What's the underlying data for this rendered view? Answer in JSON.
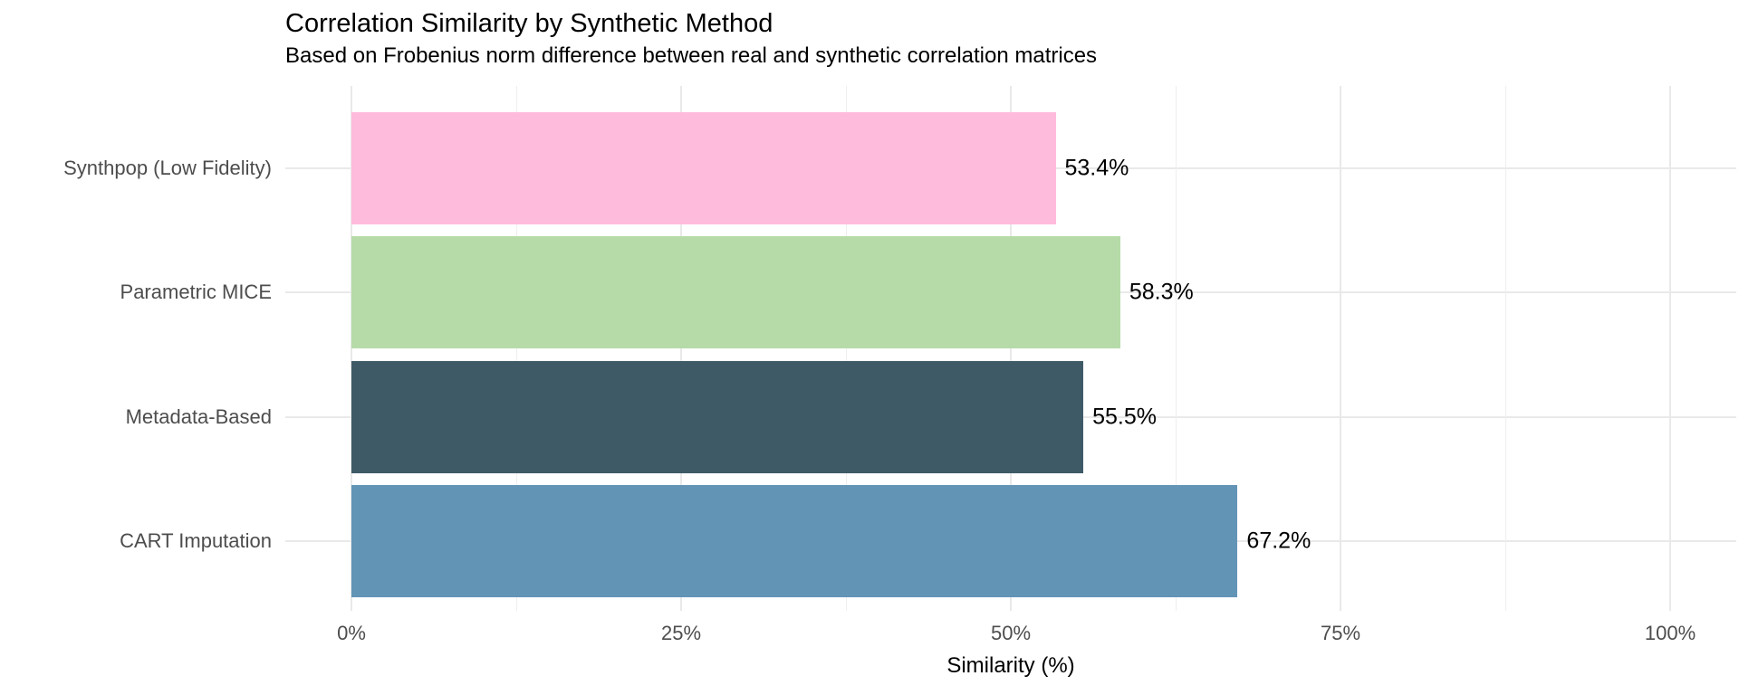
{
  "chart_data": {
    "type": "bar",
    "orientation": "horizontal",
    "title": "Correlation Similarity by Synthetic Method",
    "subtitle": "Based on Frobenius norm difference between real and synthetic correlation matrices",
    "xlabel": "Similarity (%)",
    "ylabel": "",
    "xlim": [
      0,
      100
    ],
    "grid": true,
    "legend": false,
    "categories": [
      "Synthpop (Low Fidelity)",
      "Parametric MICE",
      "Metadata-Based",
      "CART Imputation"
    ],
    "values": [
      53.4,
      58.3,
      55.5,
      67.2
    ],
    "value_labels": [
      "53.4%",
      "58.3%",
      "55.5%",
      "67.2%"
    ],
    "bar_colors": [
      "#FFBBDC",
      "#B6DBA8",
      "#3E5A67",
      "#6295B5"
    ],
    "x_ticks": [
      {
        "value": 0,
        "label": "0%"
      },
      {
        "value": 25,
        "label": "25%"
      },
      {
        "value": 50,
        "label": "50%"
      },
      {
        "value": 75,
        "label": "75%"
      },
      {
        "value": 100,
        "label": "100%"
      }
    ],
    "x_minor_ticks": [
      12.5,
      37.5,
      62.5,
      87.5
    ]
  },
  "colors": {
    "background": "#FFFFFF",
    "grid_major": "#E9E9E9",
    "grid_minor": "#EFEFEF",
    "title_text": "#000000",
    "subtitle_text": "#000000",
    "axis_text": "#4D4D4D",
    "value_label_text": "#000000"
  }
}
